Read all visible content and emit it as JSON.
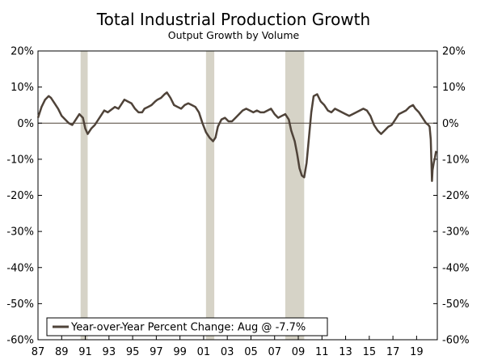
{
  "chart_data": {
    "type": "line",
    "title": "Total Industrial Production Growth",
    "subtitle": "Output Growth by Volume",
    "xlabel": "",
    "ylabel": "",
    "ylim": [
      -60,
      20
    ],
    "y_ticks": [
      "20%",
      "10%",
      "0%",
      "-10%",
      "-20%",
      "-30%",
      "-40%",
      "-50%",
      "-60%"
    ],
    "y_tick_values": [
      20,
      10,
      0,
      -10,
      -20,
      -30,
      -40,
      -50,
      -60
    ],
    "x_range": [
      1987,
      2020.75
    ],
    "x_ticks": [
      "87",
      "89",
      "91",
      "93",
      "95",
      "97",
      "99",
      "01",
      "03",
      "05",
      "07",
      "09",
      "11",
      "13",
      "15",
      "17",
      "19"
    ],
    "x_tick_values": [
      1987,
      1989,
      1991,
      1993,
      1995,
      1997,
      1999,
      2001,
      2003,
      2005,
      2007,
      2009,
      2011,
      2013,
      2015,
      2017,
      2019
    ],
    "recessions": [
      {
        "start": 1990.6,
        "end": 1991.2
      },
      {
        "start": 2001.2,
        "end": 2001.9
      },
      {
        "start": 2007.9,
        "end": 2009.5
      }
    ],
    "legend": "Year-over-Year Percent Change: Aug @ -7.7%",
    "legend_position": "bottom-left",
    "colors": {
      "line": "#4f4339",
      "recession": "#d6d3c7",
      "zero_line": "#4f4339"
    },
    "series": [
      {
        "name": "Year-over-Year Percent Change",
        "x": [
          1987.0,
          1987.3,
          1987.6,
          1987.9,
          1988.1,
          1988.4,
          1988.7,
          1989.0,
          1989.3,
          1989.6,
          1989.9,
          1990.2,
          1990.5,
          1990.8,
          1991.0,
          1991.2,
          1991.5,
          1991.8,
          1992.0,
          1992.3,
          1992.6,
          1992.9,
          1993.1,
          1993.5,
          1993.8,
          1994.0,
          1994.3,
          1994.6,
          1994.9,
          1995.2,
          1995.5,
          1995.8,
          1996.0,
          1996.3,
          1996.6,
          1996.9,
          1997.1,
          1997.4,
          1997.7,
          1997.9,
          1998.2,
          1998.5,
          1998.8,
          1999.1,
          1999.4,
          1999.7,
          2000.0,
          2000.3,
          2000.6,
          2000.9,
          2001.2,
          2001.5,
          2001.8,
          2002.0,
          2002.2,
          2002.5,
          2002.8,
          2003.1,
          2003.4,
          2003.7,
          2004.0,
          2004.3,
          2004.6,
          2004.9,
          2005.2,
          2005.5,
          2005.8,
          2006.1,
          2006.4,
          2006.7,
          2007.0,
          2007.3,
          2007.6,
          2007.9,
          2008.2,
          2008.4,
          2008.7,
          2008.9,
          2009.1,
          2009.3,
          2009.5,
          2009.7,
          2009.9,
          2010.1,
          2010.3,
          2010.6,
          2010.9,
          2011.2,
          2011.5,
          2011.8,
          2012.1,
          2012.4,
          2012.7,
          2013.0,
          2013.3,
          2013.6,
          2013.9,
          2014.2,
          2014.5,
          2014.8,
          2015.1,
          2015.4,
          2015.7,
          2016.0,
          2016.3,
          2016.6,
          2016.9,
          2017.2,
          2017.5,
          2017.8,
          2018.1,
          2018.4,
          2018.7,
          2018.9,
          2019.2,
          2019.5,
          2019.8,
          2020.0,
          2020.1,
          2020.2,
          2020.3,
          2020.35,
          2020.45,
          2020.55,
          2020.65
        ],
        "values": [
          1.5,
          4.5,
          6.5,
          7.5,
          7.0,
          5.5,
          4.0,
          2.0,
          1.0,
          0.0,
          -0.5,
          1.0,
          2.5,
          1.5,
          -1.5,
          -3.0,
          -1.5,
          -0.5,
          0.5,
          2.0,
          3.5,
          3.0,
          3.5,
          4.5,
          4.0,
          5.0,
          6.5,
          6.0,
          5.5,
          4.0,
          3.0,
          3.0,
          4.0,
          4.5,
          5.0,
          6.0,
          6.5,
          7.0,
          8.0,
          8.5,
          7.0,
          5.0,
          4.5,
          4.0,
          5.0,
          5.5,
          5.0,
          4.5,
          3.0,
          0.0,
          -2.5,
          -4.0,
          -5.0,
          -4.0,
          -1.0,
          1.0,
          1.5,
          0.5,
          0.5,
          1.5,
          2.5,
          3.5,
          4.0,
          3.5,
          3.0,
          3.5,
          3.0,
          3.0,
          3.5,
          4.0,
          2.5,
          1.5,
          2.0,
          2.5,
          1.0,
          -2.0,
          -5.0,
          -8.5,
          -12.5,
          -14.5,
          -15.0,
          -11.0,
          -4.0,
          3.0,
          7.5,
          8.0,
          6.0,
          5.0,
          3.5,
          3.0,
          4.0,
          3.5,
          3.0,
          2.5,
          2.0,
          2.5,
          3.0,
          3.5,
          4.0,
          3.5,
          2.0,
          -0.5,
          -2.0,
          -3.0,
          -2.0,
          -1.0,
          -0.5,
          1.0,
          2.5,
          3.0,
          3.5,
          4.5,
          5.0,
          4.0,
          3.0,
          1.5,
          0.0,
          -0.5,
          -1.0,
          -4.5,
          -16.0,
          -13.0,
          -11.0,
          -9.5,
          -7.7
        ]
      }
    ]
  }
}
